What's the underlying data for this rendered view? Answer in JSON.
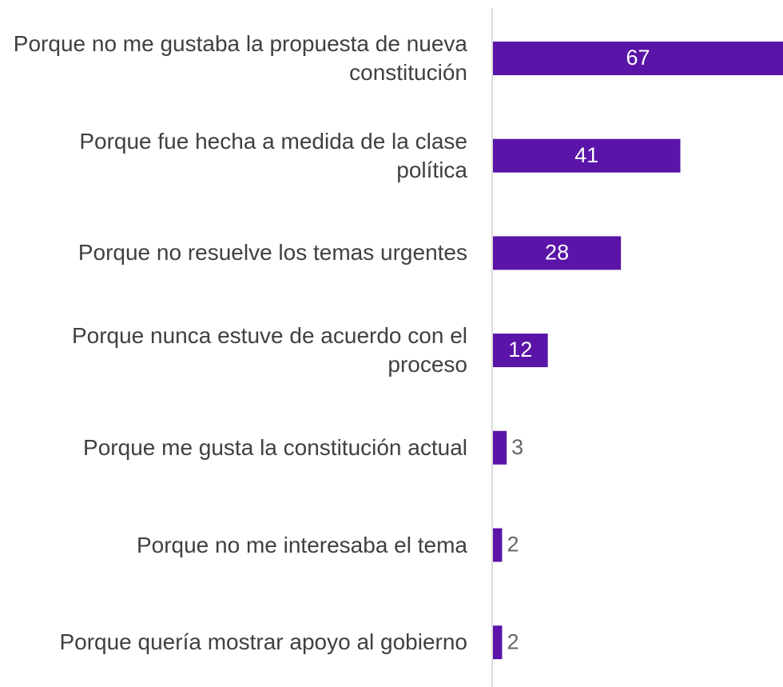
{
  "chart_data": {
    "type": "bar",
    "orientation": "horizontal",
    "categories": [
      "Porque no me gustaba la propuesta de nueva constitución",
      "Porque fue hecha a medida de la clase política",
      "Porque no resuelve los temas urgentes",
      "Porque nunca estuve de acuerdo con el proceso",
      "Porque me gusta la constitución actual",
      "Porque no me interesaba el tema",
      "Porque quería mostrar apoyo al gobierno"
    ],
    "values": [
      67,
      41,
      28,
      12,
      3,
      2,
      2
    ],
    "color": "#5a14a8"
  }
}
